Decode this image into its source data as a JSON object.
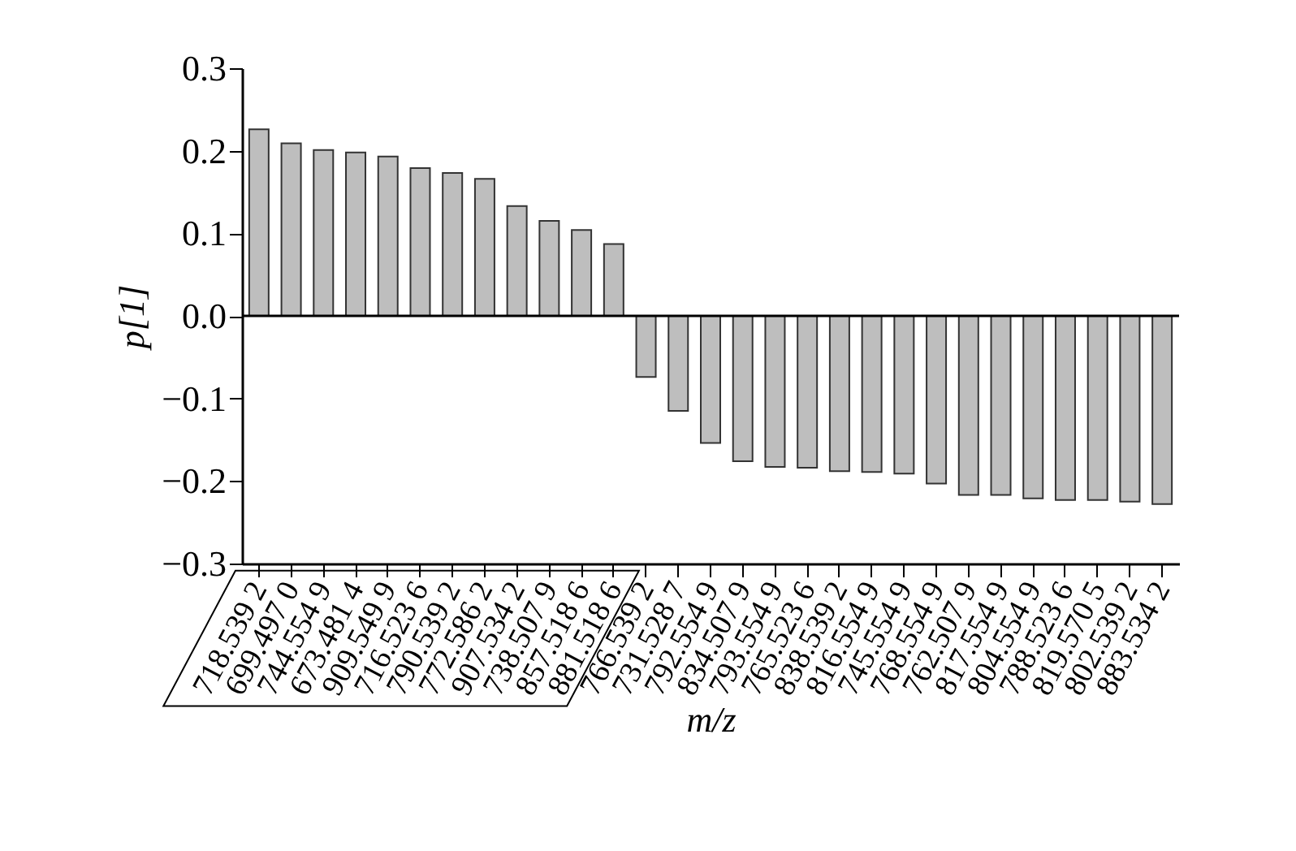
{
  "chart_data": {
    "type": "bar",
    "xlabel": "m/z",
    "ylabel": "p[1]",
    "categories": [
      "718.539 2",
      "699.497 0",
      "744.554 9",
      "673.481 4",
      "909.549 9",
      "716.523 6",
      "790.539 2",
      "772.586 2",
      "907.534 2",
      "738.507 9",
      "857.518 6",
      "881.518 6",
      "766.539 2",
      "731.528 7",
      "792.554 9",
      "834.507 9",
      "793.554 9",
      "765.523 6",
      "838.539 2",
      "816.554 9",
      "745.554 9",
      "768.554 9",
      "762.507 9",
      "817.554 9",
      "804.554 9",
      "788.523 6",
      "819.570 5",
      "802.539 2",
      "883.534 2"
    ],
    "values": [
      0.226,
      0.209,
      0.201,
      0.198,
      0.193,
      0.179,
      0.173,
      0.166,
      0.133,
      0.115,
      0.104,
      0.087,
      -0.074,
      -0.115,
      -0.154,
      -0.176,
      -0.183,
      -0.184,
      -0.188,
      -0.189,
      -0.191,
      -0.203,
      -0.217,
      -0.217,
      -0.221,
      -0.223,
      -0.223,
      -0.225,
      -0.228
    ],
    "color": "#bebebe",
    "ylim": [
      -0.3,
      0.3
    ],
    "yticks": [
      {
        "value": -0.3,
        "label": "−0.3"
      },
      {
        "value": -0.2,
        "label": "−0.2"
      },
      {
        "value": -0.1,
        "label": "−0.1"
      },
      {
        "value": 0,
        "label": "0.0"
      },
      {
        "value": 0.1,
        "label": "0.1"
      },
      {
        "value": 0.2,
        "label": "0.2"
      },
      {
        "value": 0.3,
        "label": "0.3"
      }
    ],
    "ref_lines": [
      {
        "axis": "y",
        "value": 0
      }
    ],
    "grid": false
  }
}
